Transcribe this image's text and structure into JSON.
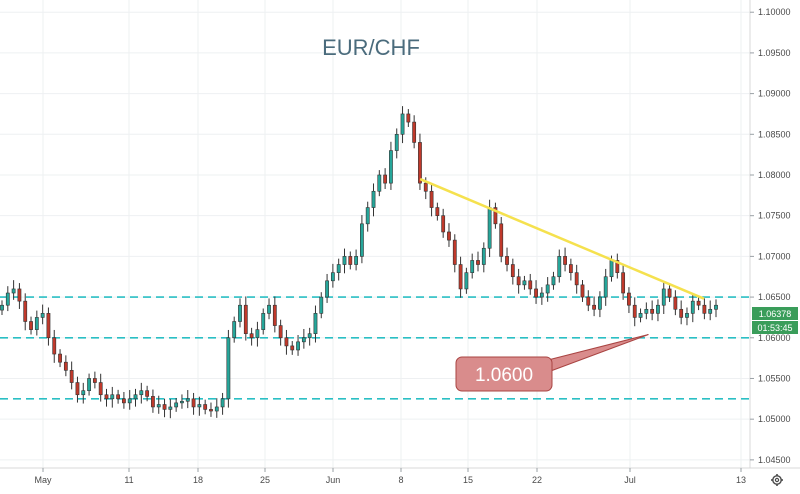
{
  "chart_data": {
    "type": "candlestick",
    "title": "EUR/CHF",
    "x_tick_labels": [
      "May",
      "11",
      "18",
      "25",
      "Jun",
      "8",
      "15",
      "22",
      "Jul",
      "13"
    ],
    "y_tick_labels": [
      "1.04500",
      "1.05000",
      "1.05500",
      "1.06000",
      "1.06500",
      "1.07000",
      "1.07500",
      "1.08000",
      "1.08500",
      "1.09000",
      "1.09500",
      "1.10000"
    ],
    "ylim": [
      1.044,
      1.1015
    ],
    "grid": true,
    "horizontal_levels": [
      1.0525,
      1.06,
      1.065
    ],
    "trendline": {
      "start": [
        "Jun 10",
        1.0795
      ],
      "end": [
        "Jul 9",
        1.0648
      ]
    },
    "callout": {
      "label": "1.0600",
      "points_to": [
        "Jul 3",
        1.0604
      ]
    },
    "last_price": "1.06378",
    "countdown": "01:53:45",
    "series_close": [
      1.064,
      1.0655,
      1.066,
      1.0645,
      1.062,
      1.061,
      1.0625,
      1.063,
      1.06,
      1.058,
      1.057,
      1.056,
      1.0545,
      1.053,
      1.0535,
      1.055,
      1.0545,
      1.053,
      1.0525,
      1.053,
      1.0525,
      1.052,
      1.0525,
      1.053,
      1.0535,
      1.0528,
      1.0515,
      1.0518,
      1.0512,
      1.0515,
      1.052,
      1.0522,
      1.0525,
      1.0515,
      1.0518,
      1.0512,
      1.051,
      1.0515,
      1.0525,
      1.06,
      1.062,
      1.064,
      1.0605,
      1.06,
      1.061,
      1.063,
      1.064,
      1.0615,
      1.06,
      1.059,
      1.0585,
      1.0595,
      1.06,
      1.0605,
      1.063,
      1.065,
      1.067,
      1.068,
      1.069,
      1.07,
      1.069,
      1.07,
      1.074,
      1.076,
      1.078,
      1.08,
      1.079,
      1.083,
      1.085,
      1.0875,
      1.0865,
      1.084,
      1.079,
      1.078,
      1.076,
      1.075,
      1.073,
      1.072,
      1.069,
      1.066,
      1.068,
      1.0695,
      1.069,
      1.071,
      1.076,
      1.074,
      1.07,
      1.069,
      1.0675,
      1.0665,
      1.067,
      1.066,
      1.065,
      1.0655,
      1.0665,
      1.0675,
      1.07,
      1.069,
      1.068,
      1.0665,
      1.065,
      1.064,
      1.0635,
      1.065,
      1.0675,
      1.0695,
      1.068,
      1.0655,
      1.064,
      1.0625,
      1.063,
      1.0635,
      1.063,
      1.064,
      1.066,
      1.065,
      1.0635,
      1.0625,
      1.063,
      1.0645,
      1.064,
      1.063,
      1.0635,
      1.064
    ]
  },
  "colors": {
    "up": "#26a69a",
    "down": "#c0392b",
    "level_line": "#2bbfc4",
    "trendline": "#f5e14e",
    "callout_fill": "#d98c8c",
    "callout_stroke": "#a94442",
    "badge_green": "#3a9d5a"
  },
  "icons": {
    "settings": "gear-icon"
  }
}
